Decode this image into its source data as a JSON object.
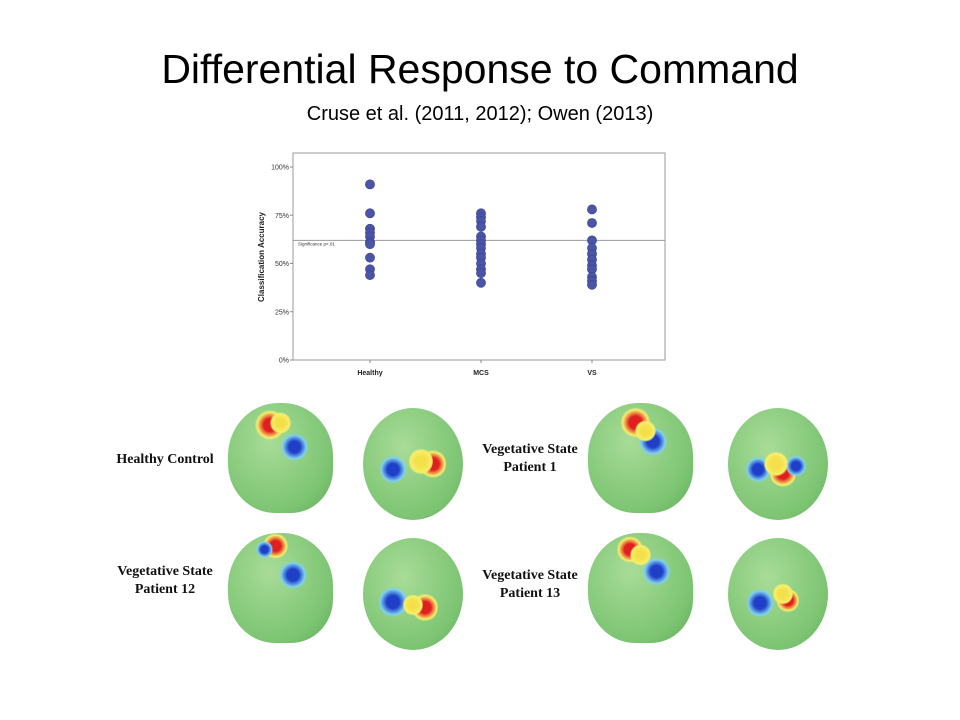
{
  "slide": {
    "title": "Differential Response to Command",
    "subtitle": "Cruse et al. (2011, 2012); Owen (2013)"
  },
  "chart_data": {
    "type": "scatter",
    "title": "",
    "xlabel": "",
    "ylabel": "Classification Accuracy",
    "categories": [
      "Healthy",
      "MCS",
      "VS"
    ],
    "yticks": [
      "0%",
      "25%",
      "50%",
      "75%",
      "100%"
    ],
    "ylim": [
      0,
      100
    ],
    "grid": false,
    "marker_color": "#4b55a5",
    "reference_line": {
      "value": 62,
      "label": "Significance p<.01"
    },
    "series": [
      {
        "name": "Healthy",
        "values": [
          91,
          76,
          68,
          66,
          64,
          61,
          60,
          53,
          47,
          44
        ]
      },
      {
        "name": "MCS",
        "values": [
          76,
          74,
          72,
          69,
          64,
          62,
          60,
          58,
          55,
          53,
          50,
          47,
          45,
          40
        ]
      },
      {
        "name": "VS",
        "values": [
          78,
          71,
          62,
          58,
          55,
          52,
          49,
          47,
          43,
          41,
          39
        ]
      }
    ]
  },
  "brain_maps": {
    "labels": [
      "Healthy Control",
      "Vegetative State Patient 1",
      "Vegetative State Patient 12",
      "Vegetative State Patient 13"
    ]
  }
}
